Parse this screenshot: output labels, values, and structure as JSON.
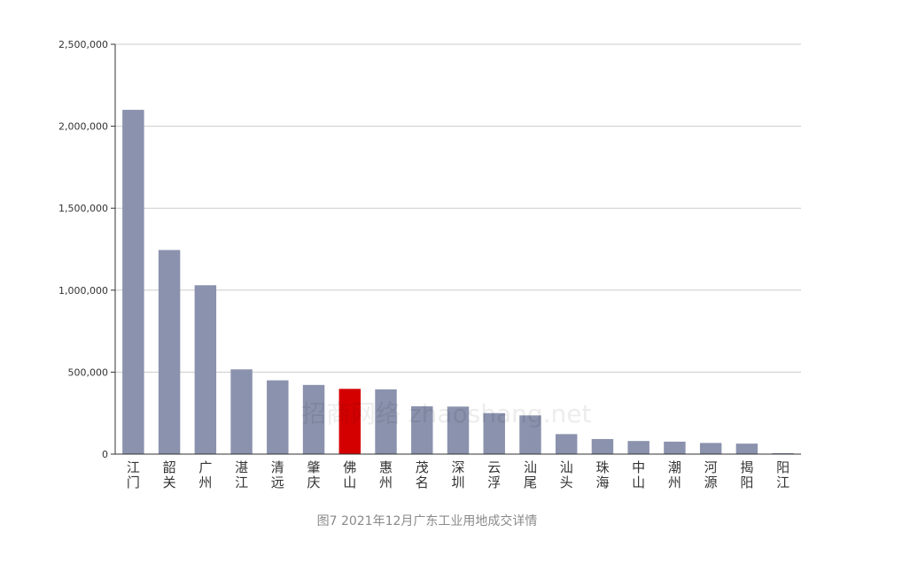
{
  "chart_data": {
    "type": "bar",
    "title": "图7 2021年12月广东工业用地成交详情",
    "categories": [
      "江门",
      "韶关",
      "广州",
      "湛江",
      "清远",
      "肇庆",
      "佛山",
      "惠州",
      "茂名",
      "深圳",
      "云浮",
      "汕尾",
      "汕头",
      "珠海",
      "中山",
      "潮州",
      "河源",
      "揭阳",
      "阳江"
    ],
    "values": [
      2100000,
      1245000,
      1030000,
      517000,
      450000,
      422000,
      398000,
      395000,
      292000,
      290000,
      250000,
      236000,
      122000,
      92000,
      80000,
      76000,
      68000,
      64000,
      6000
    ],
    "highlight_category": "佛山",
    "colors": {
      "default_bar": "#8a92ad",
      "highlight_bar": "#d40000",
      "grid": "#cccccc",
      "axis": "#333333",
      "tick_label": "#333333"
    },
    "xlabel": "",
    "ylabel": "",
    "ylim": [
      0,
      2500000
    ],
    "yticks": [
      "0",
      "500,000",
      "1,000,000",
      "1,500,000",
      "2,000,000",
      "2,500,000"
    ],
    "grid": true,
    "legend": "none"
  },
  "watermark": "招商网络 zhaoshang.net"
}
